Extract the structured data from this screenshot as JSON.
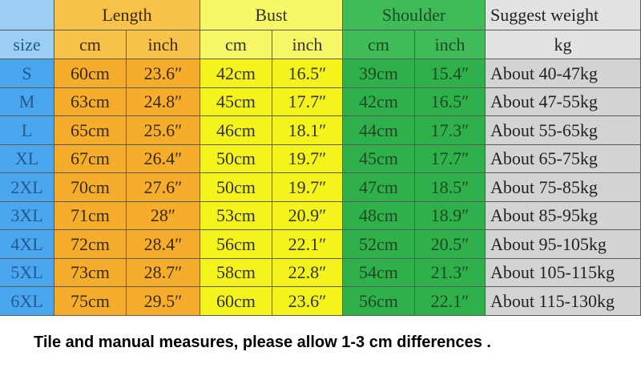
{
  "table": {
    "groups": [
      "Length",
      "Bust",
      "Shoulder",
      "Suggest weight"
    ],
    "subheaders": [
      "size",
      "cm",
      "inch",
      "cm",
      "inch",
      "cm",
      "inch",
      "kg"
    ],
    "rows": [
      [
        "S",
        "60cm",
        "23.6″",
        "42cm",
        "16.5″",
        "39cm",
        "15.4″",
        "About 40-47kg"
      ],
      [
        "M",
        "63cm",
        "24.8″",
        "45cm",
        "17.7″",
        "42cm",
        "16.5″",
        "About 47-55kg"
      ],
      [
        "L",
        "65cm",
        "25.6″",
        "46cm",
        "18.1″",
        "44cm",
        "17.3″",
        "About 55-65kg"
      ],
      [
        "XL",
        "67cm",
        "26.4″",
        "50cm",
        "19.7″",
        "45cm",
        "17.7″",
        "About 65-75kg"
      ],
      [
        "2XL",
        "70cm",
        "27.6″",
        "50cm",
        "19.7″",
        "47cm",
        "18.5″",
        "About 75-85kg"
      ],
      [
        "3XL",
        "71cm",
        "28″",
        "53cm",
        "20.9″",
        "48cm",
        "18.9″",
        "About 85-95kg"
      ],
      [
        "4XL",
        "72cm",
        "28.4″",
        "56cm",
        "22.1″",
        "52cm",
        "20.5″",
        "About 95-105kg"
      ],
      [
        "5XL",
        "73cm",
        "28.7″",
        "58cm",
        "22.8″",
        "54cm",
        "21.3″",
        "About 105-115kg"
      ],
      [
        "6XL",
        "75cm",
        "29.5″",
        "60cm",
        "23.6″",
        "56cm",
        "22.1″",
        "About 115-130kg"
      ]
    ]
  },
  "footer": "Tile and manual measures, please allow 1-3 cm differences ."
}
